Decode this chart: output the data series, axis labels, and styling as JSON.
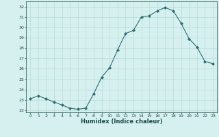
{
  "x": [
    0,
    1,
    2,
    3,
    4,
    5,
    6,
    7,
    8,
    9,
    10,
    11,
    12,
    13,
    14,
    15,
    16,
    17,
    18,
    19,
    20,
    21,
    22,
    23
  ],
  "y": [
    23.1,
    23.4,
    23.1,
    22.8,
    22.5,
    22.2,
    22.1,
    22.2,
    23.6,
    25.2,
    26.1,
    27.8,
    29.4,
    29.7,
    31.0,
    31.1,
    31.6,
    31.9,
    31.6,
    30.4,
    28.9,
    28.1,
    26.7,
    26.5
  ],
  "xlabel": "Humidex (Indice chaleur)",
  "ylabel": "",
  "ylim": [
    21.8,
    32.5
  ],
  "xlim": [
    -0.5,
    23.5
  ],
  "yticks": [
    22,
    23,
    24,
    25,
    26,
    27,
    28,
    29,
    30,
    31,
    32
  ],
  "xticks": [
    0,
    1,
    2,
    3,
    4,
    5,
    6,
    7,
    8,
    9,
    10,
    11,
    12,
    13,
    14,
    15,
    16,
    17,
    18,
    19,
    20,
    21,
    22,
    23
  ],
  "line_color": "#2d6e6e",
  "marker_color": "#2d6e6e",
  "bg_color": "#d6f0f0",
  "grid_color": "#b8dada",
  "title_color": "#1a4a4a",
  "label_color": "#1a4a4a",
  "tick_color": "#1a4a4a"
}
